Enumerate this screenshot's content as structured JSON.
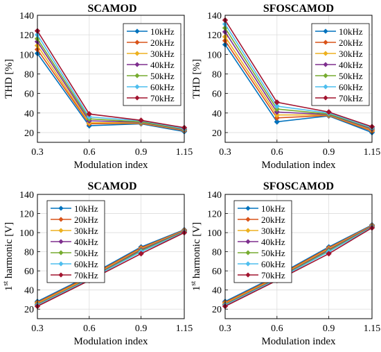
{
  "colors": [
    "#0072BD",
    "#D95319",
    "#EDB120",
    "#7E2F8E",
    "#77AC30",
    "#4DBEEE",
    "#A2142F"
  ],
  "chart_data": [
    {
      "type": "line",
      "title": "SCAMOD",
      "xlabel": "Modulation index",
      "ylabel": "THD [%]",
      "ylim": [
        10,
        140
      ],
      "yticks": [
        "20",
        "40",
        "60",
        "80",
        "100",
        "120",
        "140"
      ],
      "categories": [
        "0.3",
        "0.6",
        "0.9",
        "1.15"
      ],
      "grid": true,
      "legend": "top-right",
      "series": [
        {
          "name": "10kHz",
          "values": [
            101,
            27,
            29,
            21
          ]
        },
        {
          "name": "20kHz",
          "values": [
            105,
            29,
            29.5,
            22
          ]
        },
        {
          "name": "30kHz",
          "values": [
            109,
            30,
            30,
            22.5
          ]
        },
        {
          "name": "40kHz",
          "values": [
            113,
            32,
            30.5,
            23
          ]
        },
        {
          "name": "50kHz",
          "values": [
            116,
            34,
            31,
            23.5
          ]
        },
        {
          "name": "60kHz",
          "values": [
            120,
            36,
            32,
            24
          ]
        },
        {
          "name": "70kHz",
          "values": [
            124,
            39,
            32.5,
            25
          ]
        }
      ]
    },
    {
      "type": "line",
      "title": "SFOSCAMOD",
      "xlabel": "Modulation index",
      "ylabel": "THD [%]",
      "ylim": [
        10,
        140
      ],
      "yticks": [
        "20",
        "40",
        "60",
        "80",
        "100",
        "120",
        "140"
      ],
      "categories": [
        "0.3",
        "0.6",
        "0.9",
        "1.15"
      ],
      "grid": true,
      "legend": "top-right",
      "series": [
        {
          "name": "10kHz",
          "values": [
            110,
            31,
            37,
            20
          ]
        },
        {
          "name": "20kHz",
          "values": [
            114,
            35,
            37.5,
            21.5
          ]
        },
        {
          "name": "30kHz",
          "values": [
            118,
            38,
            38,
            22.5
          ]
        },
        {
          "name": "40kHz",
          "values": [
            123,
            41,
            38.5,
            23.5
          ]
        },
        {
          "name": "50kHz",
          "values": [
            127,
            44,
            39,
            24.5
          ]
        },
        {
          "name": "60kHz",
          "values": [
            131,
            47,
            40,
            25
          ]
        },
        {
          "name": "70kHz",
          "values": [
            135,
            51,
            41,
            26
          ]
        }
      ]
    },
    {
      "type": "line",
      "title": "SCAMOD",
      "xlabel": "Modulation index",
      "ylabel_main": "1",
      "ylabel_sup": "st",
      "ylabel_rest": " harmonic [V]",
      "ylim": [
        10,
        140
      ],
      "yticks": [
        "20",
        "40",
        "60",
        "80",
        "100",
        "120",
        "140"
      ],
      "categories": [
        "0.3",
        "0.6",
        "0.9",
        "1.15"
      ],
      "grid": true,
      "legend": "top-left",
      "series": [
        {
          "name": "10kHz",
          "values": [
            28,
            55,
            85,
            103
          ]
        },
        {
          "name": "20kHz",
          "values": [
            27,
            54,
            84,
            102.5
          ]
        },
        {
          "name": "30kHz",
          "values": [
            26,
            53,
            83,
            102
          ]
        },
        {
          "name": "40kHz",
          "values": [
            25,
            52,
            82,
            101.5
          ]
        },
        {
          "name": "50kHz",
          "values": [
            24.5,
            51.5,
            81,
            101
          ]
        },
        {
          "name": "60kHz",
          "values": [
            24,
            51,
            80,
            100.5
          ]
        },
        {
          "name": "70kHz",
          "values": [
            23,
            50,
            78,
            100
          ]
        }
      ]
    },
    {
      "type": "line",
      "title": "SFOSCAMOD",
      "xlabel": "Modulation index",
      "ylabel_main": "1",
      "ylabel_sup": "st",
      "ylabel_rest": " harmonic [V]",
      "ylim": [
        10,
        140
      ],
      "yticks": [
        "20",
        "40",
        "60",
        "80",
        "100",
        "120",
        "140"
      ],
      "categories": [
        "0.3",
        "0.6",
        "0.9",
        "1.15"
      ],
      "grid": true,
      "legend": "top-left",
      "series": [
        {
          "name": "10kHz",
          "values": [
            28,
            55,
            85,
            108
          ]
        },
        {
          "name": "20kHz",
          "values": [
            27,
            54,
            84,
            107.5
          ]
        },
        {
          "name": "30kHz",
          "values": [
            26,
            53,
            83,
            107
          ]
        },
        {
          "name": "40kHz",
          "values": [
            25,
            52,
            82,
            106.5
          ]
        },
        {
          "name": "50kHz",
          "values": [
            24.5,
            51.5,
            81,
            106
          ]
        },
        {
          "name": "60kHz",
          "values": [
            24,
            51,
            80,
            105.5
          ]
        },
        {
          "name": "70kHz",
          "values": [
            23,
            50,
            78,
            105
          ]
        }
      ]
    }
  ]
}
